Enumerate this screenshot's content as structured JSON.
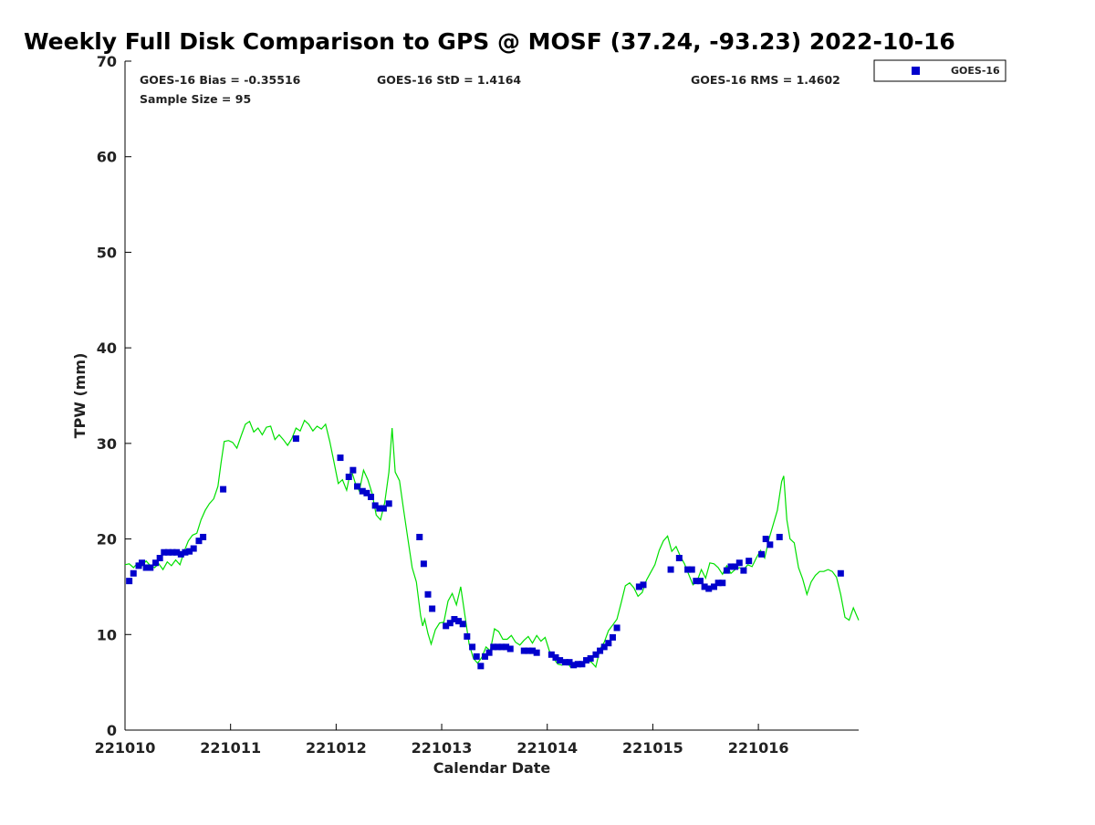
{
  "chart_data": {
    "type": "scatter",
    "title": "Weekly Full Disk Comparison to GPS @ MOSF (37.24, -93.23) 2022-10-16",
    "xlabel": "Calendar Date",
    "ylabel": "TPW (mm)",
    "xlim": [
      0,
      6.95
    ],
    "ylim": [
      0,
      70
    ],
    "x_ticks": [
      {
        "value": 0,
        "label": "221010"
      },
      {
        "value": 1,
        "label": "221011"
      },
      {
        "value": 2,
        "label": "221012"
      },
      {
        "value": 3,
        "label": "221013"
      },
      {
        "value": 4,
        "label": "221014"
      },
      {
        "value": 5,
        "label": "221015"
      },
      {
        "value": 6,
        "label": "221016"
      }
    ],
    "y_ticks": [
      0,
      10,
      20,
      30,
      40,
      50,
      60,
      70
    ],
    "grid": false,
    "legend": {
      "position": "top-right-outside",
      "entries": [
        {
          "name": "GOES-16",
          "color": "#0000cc",
          "marker": "square"
        }
      ]
    },
    "annotations": {
      "bias": "GOES-16 Bias = -0.35516",
      "std": "GOES-16 StD = 1.4164",
      "rms": "GOES-16 RMS = 1.4602",
      "sample_size": "Sample Size = 95"
    },
    "series": [
      {
        "name": "GPS",
        "style": "line",
        "color": "#00e000",
        "points": [
          [
            0.0,
            17.3
          ],
          [
            0.04,
            17.4
          ],
          [
            0.08,
            17.0
          ],
          [
            0.12,
            17.5
          ],
          [
            0.16,
            17.2
          ],
          [
            0.2,
            17.7
          ],
          [
            0.24,
            17.2
          ],
          [
            0.28,
            17.0
          ],
          [
            0.32,
            17.4
          ],
          [
            0.36,
            16.8
          ],
          [
            0.4,
            17.6
          ],
          [
            0.44,
            17.2
          ],
          [
            0.48,
            17.8
          ],
          [
            0.52,
            17.3
          ],
          [
            0.56,
            18.7
          ],
          [
            0.6,
            19.8
          ],
          [
            0.64,
            20.4
          ],
          [
            0.68,
            20.6
          ],
          [
            0.72,
            22.0
          ],
          [
            0.76,
            23.0
          ],
          [
            0.8,
            23.7
          ],
          [
            0.84,
            24.2
          ],
          [
            0.88,
            25.5
          ],
          [
            0.91,
            28.0
          ],
          [
            0.94,
            30.2
          ],
          [
            0.98,
            30.3
          ],
          [
            1.02,
            30.1
          ],
          [
            1.06,
            29.5
          ],
          [
            1.1,
            30.8
          ],
          [
            1.14,
            32.0
          ],
          [
            1.18,
            32.3
          ],
          [
            1.22,
            31.2
          ],
          [
            1.26,
            31.6
          ],
          [
            1.3,
            30.9
          ],
          [
            1.34,
            31.7
          ],
          [
            1.38,
            31.8
          ],
          [
            1.42,
            30.4
          ],
          [
            1.46,
            30.9
          ],
          [
            1.5,
            30.4
          ],
          [
            1.54,
            29.8
          ],
          [
            1.58,
            30.5
          ],
          [
            1.62,
            31.6
          ],
          [
            1.66,
            31.3
          ],
          [
            1.7,
            32.4
          ],
          [
            1.74,
            32.0
          ],
          [
            1.78,
            31.3
          ],
          [
            1.82,
            31.8
          ],
          [
            1.86,
            31.5
          ],
          [
            1.9,
            32.0
          ],
          [
            1.94,
            30.2
          ],
          [
            1.98,
            28.0
          ],
          [
            2.02,
            25.8
          ],
          [
            2.06,
            26.2
          ],
          [
            2.1,
            25.1
          ],
          [
            2.14,
            27.3
          ],
          [
            2.18,
            25.9
          ],
          [
            2.22,
            25.0
          ],
          [
            2.26,
            27.2
          ],
          [
            2.3,
            26.2
          ],
          [
            2.34,
            24.8
          ],
          [
            2.38,
            22.5
          ],
          [
            2.42,
            22.0
          ],
          [
            2.46,
            23.8
          ],
          [
            2.5,
            27.0
          ],
          [
            2.53,
            31.6
          ],
          [
            2.56,
            27.0
          ],
          [
            2.6,
            26.1
          ],
          [
            2.64,
            23.0
          ],
          [
            2.68,
            20.0
          ],
          [
            2.72,
            17.0
          ],
          [
            2.76,
            15.5
          ],
          [
            2.8,
            12.0
          ],
          [
            2.82,
            10.9
          ],
          [
            2.84,
            11.6
          ],
          [
            2.87,
            10.1
          ],
          [
            2.9,
            9.0
          ],
          [
            2.94,
            10.5
          ],
          [
            2.98,
            11.2
          ],
          [
            3.02,
            11.3
          ],
          [
            3.06,
            13.5
          ],
          [
            3.1,
            14.3
          ],
          [
            3.14,
            13.1
          ],
          [
            3.18,
            15.0
          ],
          [
            3.22,
            12.0
          ],
          [
            3.26,
            9.0
          ],
          [
            3.3,
            7.5
          ],
          [
            3.34,
            7.0
          ],
          [
            3.38,
            7.6
          ],
          [
            3.42,
            8.7
          ],
          [
            3.46,
            8.3
          ],
          [
            3.5,
            10.6
          ],
          [
            3.54,
            10.3
          ],
          [
            3.58,
            9.5
          ],
          [
            3.62,
            9.5
          ],
          [
            3.66,
            9.9
          ],
          [
            3.7,
            9.2
          ],
          [
            3.74,
            8.9
          ],
          [
            3.78,
            9.4
          ],
          [
            3.82,
            9.8
          ],
          [
            3.86,
            9.1
          ],
          [
            3.9,
            9.9
          ],
          [
            3.94,
            9.3
          ],
          [
            3.98,
            9.7
          ],
          [
            4.02,
            8.3
          ],
          [
            4.06,
            7.5
          ],
          [
            4.1,
            6.9
          ],
          [
            4.14,
            6.8
          ],
          [
            4.18,
            7.2
          ],
          [
            4.22,
            6.6
          ],
          [
            4.26,
            6.9
          ],
          [
            4.3,
            7.0
          ],
          [
            4.34,
            6.9
          ],
          [
            4.38,
            7.3
          ],
          [
            4.42,
            7.1
          ],
          [
            4.46,
            6.6
          ],
          [
            4.5,
            8.5
          ],
          [
            4.54,
            9.2
          ],
          [
            4.58,
            10.4
          ],
          [
            4.62,
            11.0
          ],
          [
            4.66,
            11.6
          ],
          [
            4.7,
            13.3
          ],
          [
            4.74,
            15.1
          ],
          [
            4.78,
            15.4
          ],
          [
            4.82,
            14.9
          ],
          [
            4.86,
            14.0
          ],
          [
            4.9,
            14.4
          ],
          [
            4.94,
            15.7
          ],
          [
            4.98,
            16.5
          ],
          [
            5.02,
            17.3
          ],
          [
            5.06,
            18.8
          ],
          [
            5.1,
            19.8
          ],
          [
            5.14,
            20.3
          ],
          [
            5.18,
            18.7
          ],
          [
            5.22,
            19.2
          ],
          [
            5.26,
            18.2
          ],
          [
            5.3,
            17.4
          ],
          [
            5.34,
            16.3
          ],
          [
            5.38,
            15.2
          ],
          [
            5.42,
            15.6
          ],
          [
            5.46,
            16.8
          ],
          [
            5.5,
            15.9
          ],
          [
            5.54,
            17.5
          ],
          [
            5.58,
            17.4
          ],
          [
            5.62,
            17.0
          ],
          [
            5.66,
            16.3
          ],
          [
            5.7,
            17.2
          ],
          [
            5.74,
            16.4
          ],
          [
            5.78,
            16.8
          ],
          [
            5.82,
            17.0
          ],
          [
            5.86,
            16.8
          ],
          [
            5.9,
            17.3
          ],
          [
            5.94,
            17.1
          ],
          [
            5.98,
            18.0
          ],
          [
            6.02,
            18.8
          ],
          [
            6.06,
            18.0
          ],
          [
            6.1,
            20.0
          ],
          [
            6.14,
            21.5
          ],
          [
            6.18,
            23.0
          ],
          [
            6.22,
            26.0
          ],
          [
            6.24,
            26.6
          ],
          [
            6.27,
            22.0
          ],
          [
            6.3,
            20.0
          ],
          [
            6.34,
            19.6
          ],
          [
            6.38,
            17.0
          ],
          [
            6.42,
            15.8
          ],
          [
            6.46,
            14.2
          ],
          [
            6.5,
            15.5
          ],
          [
            6.54,
            16.2
          ],
          [
            6.58,
            16.6
          ],
          [
            6.62,
            16.6
          ],
          [
            6.66,
            16.8
          ],
          [
            6.7,
            16.6
          ],
          [
            6.74,
            16.0
          ],
          [
            6.78,
            14.2
          ],
          [
            6.82,
            11.8
          ],
          [
            6.86,
            11.5
          ],
          [
            6.9,
            12.8
          ],
          [
            6.95,
            11.5
          ]
        ]
      },
      {
        "name": "GOES-16",
        "style": "marker",
        "color": "#0000cc",
        "points": [
          [
            0.04,
            15.6
          ],
          [
            0.08,
            16.4
          ],
          [
            0.13,
            17.2
          ],
          [
            0.16,
            17.5
          ],
          [
            0.2,
            17.0
          ],
          [
            0.24,
            17.0
          ],
          [
            0.29,
            17.5
          ],
          [
            0.33,
            18.0
          ],
          [
            0.37,
            18.6
          ],
          [
            0.41,
            18.6
          ],
          [
            0.45,
            18.6
          ],
          [
            0.49,
            18.6
          ],
          [
            0.53,
            18.4
          ],
          [
            0.57,
            18.6
          ],
          [
            0.61,
            18.7
          ],
          [
            0.65,
            19.0
          ],
          [
            0.7,
            19.8
          ],
          [
            0.74,
            20.2
          ],
          [
            0.93,
            25.2
          ],
          [
            1.62,
            30.5
          ],
          [
            2.04,
            28.5
          ],
          [
            2.12,
            26.5
          ],
          [
            2.16,
            27.2
          ],
          [
            2.2,
            25.5
          ],
          [
            2.25,
            25.0
          ],
          [
            2.29,
            24.8
          ],
          [
            2.33,
            24.4
          ],
          [
            2.37,
            23.5
          ],
          [
            2.41,
            23.2
          ],
          [
            2.45,
            23.2
          ],
          [
            2.5,
            23.7
          ],
          [
            2.79,
            20.2
          ],
          [
            2.83,
            17.4
          ],
          [
            2.87,
            14.2
          ],
          [
            2.91,
            12.7
          ],
          [
            3.04,
            10.9
          ],
          [
            3.08,
            11.2
          ],
          [
            3.12,
            11.6
          ],
          [
            3.16,
            11.4
          ],
          [
            3.2,
            11.1
          ],
          [
            3.24,
            9.8
          ],
          [
            3.29,
            8.7
          ],
          [
            3.33,
            7.7
          ],
          [
            3.37,
            6.7
          ],
          [
            3.41,
            7.7
          ],
          [
            3.45,
            8.1
          ],
          [
            3.49,
            8.7
          ],
          [
            3.53,
            8.7
          ],
          [
            3.57,
            8.7
          ],
          [
            3.61,
            8.7
          ],
          [
            3.65,
            8.5
          ],
          [
            3.78,
            8.3
          ],
          [
            3.82,
            8.3
          ],
          [
            3.86,
            8.3
          ],
          [
            3.9,
            8.1
          ],
          [
            4.04,
            7.9
          ],
          [
            4.08,
            7.6
          ],
          [
            4.12,
            7.3
          ],
          [
            4.17,
            7.1
          ],
          [
            4.21,
            7.1
          ],
          [
            4.25,
            6.8
          ],
          [
            4.29,
            6.9
          ],
          [
            4.33,
            6.9
          ],
          [
            4.37,
            7.3
          ],
          [
            4.41,
            7.5
          ],
          [
            4.46,
            7.9
          ],
          [
            4.5,
            8.3
          ],
          [
            4.54,
            8.7
          ],
          [
            4.58,
            9.1
          ],
          [
            4.62,
            9.7
          ],
          [
            4.66,
            10.7
          ],
          [
            4.87,
            15.0
          ],
          [
            4.91,
            15.2
          ],
          [
            5.17,
            16.8
          ],
          [
            5.25,
            18.0
          ],
          [
            5.33,
            16.8
          ],
          [
            5.37,
            16.8
          ],
          [
            5.41,
            15.6
          ],
          [
            5.45,
            15.6
          ],
          [
            5.49,
            15.0
          ],
          [
            5.53,
            14.8
          ],
          [
            5.58,
            15.0
          ],
          [
            5.62,
            15.4
          ],
          [
            5.66,
            15.4
          ],
          [
            5.7,
            16.7
          ],
          [
            5.74,
            17.1
          ],
          [
            5.78,
            17.1
          ],
          [
            5.82,
            17.5
          ],
          [
            5.86,
            16.7
          ],
          [
            5.91,
            17.7
          ],
          [
            6.03,
            18.4
          ],
          [
            6.07,
            20.0
          ],
          [
            6.11,
            19.4
          ],
          [
            6.2,
            20.2
          ],
          [
            6.78,
            16.4
          ]
        ]
      }
    ]
  }
}
